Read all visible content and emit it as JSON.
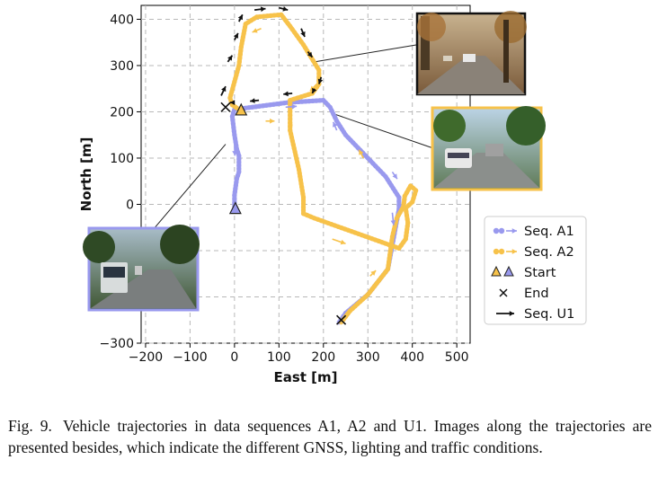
{
  "chart_data": {
    "type": "line",
    "xlabel": "East [m]",
    "ylabel": "North [m]",
    "xlim": [
      -210,
      530
    ],
    "ylim": [
      -300,
      430
    ],
    "x_ticks": [
      "−200",
      "−100",
      "0",
      "100",
      "200",
      "300",
      "400",
      "500"
    ],
    "y_ticks": [
      "400",
      "300",
      "200",
      "100",
      "0",
      "−100",
      "−200",
      "−300"
    ],
    "x_tick_values": [
      -200,
      -100,
      0,
      100,
      200,
      300,
      400,
      500
    ],
    "y_tick_values": [
      400,
      300,
      200,
      100,
      0,
      -100,
      -200,
      -300
    ],
    "grid": true,
    "legend_position": "right",
    "legend": [
      {
        "label": "Seq. A1",
        "kind": "dots-arrow",
        "color": "#9999ee"
      },
      {
        "label": "Seq. A2",
        "kind": "dots-arrow",
        "color": "#f7c24a"
      },
      {
        "label": "Start",
        "kind": "triangles"
      },
      {
        "label": "End",
        "kind": "cross"
      },
      {
        "label": "Seq. U1",
        "kind": "arrow",
        "color": "#111111"
      }
    ],
    "series": [
      {
        "name": "Seq. A1",
        "color": "#9999ee",
        "points": [
          [
            0,
            -5
          ],
          [
            0,
            20
          ],
          [
            5,
            55
          ],
          [
            10,
            70
          ],
          [
            10,
            105
          ],
          [
            5,
            120
          ],
          [
            0,
            150
          ],
          [
            -5,
            190
          ],
          [
            0,
            205
          ],
          [
            120,
            220
          ],
          [
            200,
            225
          ],
          [
            215,
            210
          ],
          [
            230,
            180
          ],
          [
            250,
            150
          ],
          [
            300,
            100
          ],
          [
            340,
            60
          ],
          [
            370,
            15
          ],
          [
            370,
            -10
          ],
          [
            345,
            -140
          ],
          [
            300,
            -195
          ],
          [
            250,
            -235
          ],
          [
            235,
            -255
          ]
        ],
        "direction_arrows": [
          [
            [
              115,
              210
            ],
            [
              140,
              212
            ]
          ],
          [
            [
              230,
              160
            ],
            [
              222,
              178
            ]
          ],
          [
            [
              355,
              70
            ],
            [
              366,
              55
            ]
          ],
          [
            [
              355,
              -18
            ],
            [
              358,
              -45
            ]
          ],
          [
            [
              0,
              125
            ],
            [
              1,
              105
            ]
          ]
        ]
      },
      {
        "name": "Seq. A2",
        "color": "#f7c24a",
        "points": [
          [
            10,
            205
          ],
          [
            -5,
            215
          ],
          [
            -10,
            230
          ],
          [
            0,
            265
          ],
          [
            10,
            300
          ],
          [
            15,
            340
          ],
          [
            25,
            390
          ],
          [
            50,
            405
          ],
          [
            105,
            410
          ],
          [
            125,
            385
          ],
          [
            155,
            345
          ],
          [
            190,
            290
          ],
          [
            190,
            260
          ],
          [
            175,
            240
          ],
          [
            125,
            225
          ],
          [
            125,
            160
          ],
          [
            145,
            75
          ],
          [
            155,
            15
          ],
          [
            155,
            -20
          ],
          [
            180,
            -30
          ],
          [
            370,
            -95
          ],
          [
            385,
            -75
          ],
          [
            390,
            -40
          ],
          [
            385,
            -8
          ],
          [
            400,
            5
          ],
          [
            408,
            30
          ],
          [
            396,
            40
          ],
          [
            383,
            18
          ],
          [
            380,
            -5
          ],
          [
            365,
            -30
          ],
          [
            355,
            -70
          ],
          [
            345,
            -140
          ],
          [
            300,
            -195
          ],
          [
            260,
            -230
          ],
          [
            240,
            -255
          ]
        ],
        "direction_arrows": [
          [
            [
              60,
              380
            ],
            [
              40,
              372
            ]
          ],
          [
            [
              185,
              260
            ],
            [
              170,
              245
            ]
          ],
          [
            [
              125,
              185
            ],
            [
              126,
              162
            ]
          ],
          [
            [
              220,
              -75
            ],
            [
              250,
              -85
            ]
          ],
          [
            [
              305,
              -155
            ],
            [
              318,
              -143
            ]
          ],
          [
            [
              290,
              100
            ],
            [
              280,
              118
            ]
          ],
          [
            [
              70,
              180
            ],
            [
              90,
              180
            ]
          ]
        ]
      },
      {
        "name": "Seq. U1",
        "color": "#111111",
        "points": [],
        "direction_arrows": [
          [
            [
              -30,
              235
            ],
            [
              -20,
              255
            ]
          ],
          [
            [
              -15,
              308
            ],
            [
              -5,
              322
            ]
          ],
          [
            [
              0,
              355
            ],
            [
              8,
              370
            ]
          ],
          [
            [
              10,
              395
            ],
            [
              18,
              410
            ]
          ],
          [
            [
              45,
              420
            ],
            [
              70,
              423
            ]
          ],
          [
            [
              100,
              425
            ],
            [
              120,
              420
            ]
          ],
          [
            [
              150,
              380
            ],
            [
              158,
              362
            ]
          ],
          [
            [
              165,
              330
            ],
            [
              175,
              318
            ]
          ],
          [
            [
              195,
              275
            ],
            [
              190,
              260
            ]
          ],
          [
            [
              180,
              250
            ],
            [
              175,
              240
            ]
          ],
          [
            [
              130,
              240
            ],
            [
              110,
              238
            ]
          ],
          [
            [
              55,
              225
            ],
            [
              35,
              223
            ]
          ],
          [
            [
              0,
              220
            ],
            [
              -10,
              220
            ]
          ]
        ]
      }
    ],
    "start_markers": [
      {
        "series": "Seq. A1",
        "x": 2,
        "y": -10
      },
      {
        "series": "Seq. A2",
        "x": 15,
        "y": 203
      }
    ],
    "end_markers": [
      {
        "series": "Seq. A1",
        "x": -20,
        "y": 210
      },
      {
        "series": "Seq. A2",
        "x": 240,
        "y": -250
      }
    ],
    "callout_leaders": [
      {
        "from": [
          180,
          308
        ],
        "photo": "top-right"
      },
      {
        "from": [
          225,
          195
        ],
        "photo": "middle-right"
      },
      {
        "from": [
          -20,
          130
        ],
        "photo": "bottom-left"
      }
    ]
  },
  "photos": [
    {
      "name": "street-photo-top",
      "border": "#111111",
      "scene": "autumn-street"
    },
    {
      "name": "street-photo-middle",
      "border": "#f7c24a",
      "scene": "campus-road"
    },
    {
      "name": "street-photo-bottom",
      "border": "#9999ee",
      "scene": "bus-road"
    }
  ],
  "caption": {
    "label": "Fig. 9.",
    "text": "Vehicle trajectories in data sequences A1, A2 and U1. Images along the trajectories are presented besides, which indicate the different GNSS, lighting and traffic conditions."
  }
}
